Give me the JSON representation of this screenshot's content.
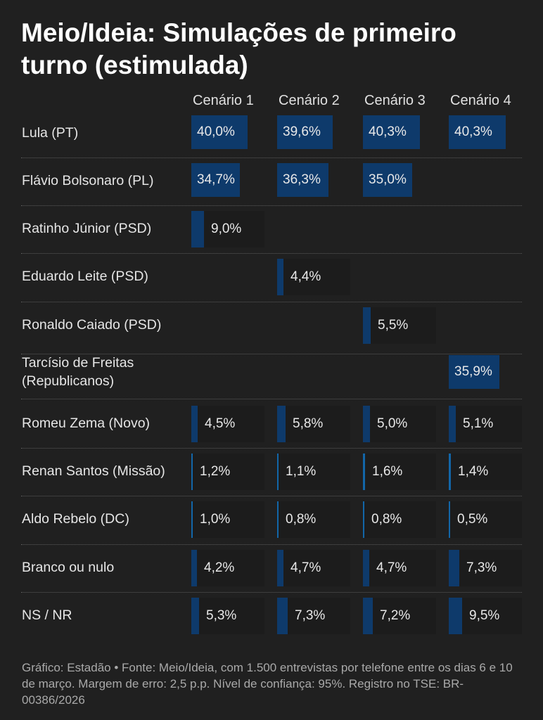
{
  "chart_data": {
    "type": "table",
    "title": "Meio/Ideia: Simulações de primeiro turno (estimulada)",
    "columns": [
      "Cenário 1",
      "Cenário 2",
      "Cenário 3",
      "Cenário 4"
    ],
    "rows": [
      {
        "label": "Lula (PT)",
        "values": [
          40.0,
          39.6,
          40.3,
          40.3
        ],
        "display": [
          "40,0%",
          "39,6%",
          "40,3%",
          "40,3%"
        ]
      },
      {
        "label": "Flávio Bolsonaro (PL)",
        "values": [
          34.7,
          36.3,
          35.0,
          null
        ],
        "display": [
          "34,7%",
          "36,3%",
          "35,0%",
          ""
        ]
      },
      {
        "label": "Ratinho Júnior (PSD)",
        "values": [
          9.0,
          null,
          null,
          null
        ],
        "display": [
          "9,0%",
          "",
          "",
          ""
        ]
      },
      {
        "label": "Eduardo Leite (PSD)",
        "values": [
          null,
          4.4,
          null,
          null
        ],
        "display": [
          "",
          "4,4%",
          "",
          ""
        ]
      },
      {
        "label": "Ronaldo Caiado (PSD)",
        "values": [
          null,
          null,
          5.5,
          null
        ],
        "display": [
          "",
          "",
          "5,5%",
          ""
        ]
      },
      {
        "label": "Tarcísio de Freitas\n(Republicanos)",
        "values": [
          null,
          null,
          null,
          35.9
        ],
        "display": [
          "",
          "",
          "",
          "35,9%"
        ]
      },
      {
        "label": "Romeu Zema (Novo)",
        "values": [
          4.5,
          5.8,
          5.0,
          5.1
        ],
        "display": [
          "4,5%",
          "5,8%",
          "5,0%",
          "5,1%"
        ]
      },
      {
        "label": "Renan Santos (Missão)",
        "values": [
          1.2,
          1.1,
          1.6,
          1.4
        ],
        "display": [
          "1,2%",
          "1,1%",
          "1,6%",
          "1,4%"
        ]
      },
      {
        "label": "Aldo Rebelo (DC)",
        "values": [
          1.0,
          0.8,
          0.8,
          0.5
        ],
        "display": [
          "1,0%",
          "0,8%",
          "0,8%",
          "0,5%"
        ]
      },
      {
        "label": "Branco ou nulo",
        "values": [
          4.2,
          4.7,
          4.7,
          7.3
        ],
        "display": [
          "4,2%",
          "4,7%",
          "4,7%",
          "7,3%"
        ]
      },
      {
        "label": "NS / NR",
        "values": [
          5.3,
          7.3,
          7.2,
          9.5
        ],
        "display": [
          "5,3%",
          "7,3%",
          "7,2%",
          "9,5%"
        ]
      }
    ],
    "colors": {
      "bar": "#0e3a6b",
      "thin_bar": "#1266a8",
      "background": "#202020"
    }
  },
  "footer": "Gráfico: Estadão • Fonte: Meio/Ideia, com 1.500 entrevistas por telefone entre os dias 6 e 10 de março. Margem de erro: 2,5 p.p. Nível de confiança: 95%. Registro no TSE: BR-00386/2026"
}
